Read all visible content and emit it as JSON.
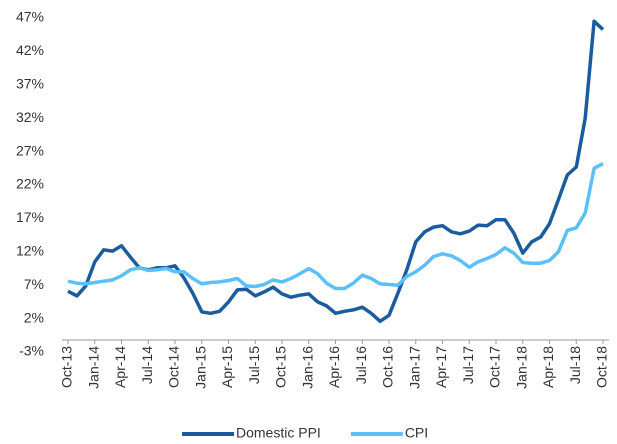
{
  "chart_data": {
    "type": "line",
    "categories": [
      "Oct-13",
      null,
      null,
      "Jan-14",
      null,
      null,
      "Apr-14",
      null,
      null,
      "Jul-14",
      null,
      null,
      "Oct-14",
      null,
      null,
      "Jan-15",
      null,
      null,
      "Apr-15",
      null,
      null,
      "Jul-15",
      null,
      null,
      "Oct-15",
      null,
      null,
      "Jan-16",
      null,
      null,
      "Apr-16",
      null,
      null,
      "Jul-16",
      null,
      null,
      "Oct-16",
      null,
      null,
      "Jan-17",
      null,
      null,
      "Apr-17",
      null,
      null,
      "Jul-17",
      null,
      null,
      "Oct-17",
      null,
      null,
      "Jan-18",
      null,
      null,
      "Apr-18",
      null,
      null,
      "Jul-18",
      null,
      null,
      "Oct-18"
    ],
    "series": [
      {
        "name": "Domestic PPI",
        "color": "#1b5c9e",
        "values": [
          6.1,
          5.4,
          6.9,
          10.5,
          12.3,
          12.1,
          12.9,
          11.2,
          9.6,
          9.3,
          9.6,
          9.6,
          9.9,
          8.1,
          5.8,
          3.0,
          2.8,
          3.1,
          4.5,
          6.3,
          6.4,
          5.4,
          6.0,
          6.7,
          5.7,
          5.2,
          5.5,
          5.7,
          4.5,
          3.9,
          2.8,
          3.1,
          3.3,
          3.7,
          2.8,
          1.6,
          2.5,
          5.8,
          9.3,
          13.5,
          15.0,
          15.7,
          15.9,
          15.0,
          14.7,
          15.1,
          16.0,
          15.9,
          16.8,
          16.8,
          14.8,
          11.8,
          13.5,
          14.2,
          16.2,
          19.8,
          23.5,
          24.7,
          32.0,
          46.5,
          45.3
        ]
      },
      {
        "name": "CPI",
        "color": "#5bc0f8",
        "values": [
          7.6,
          7.3,
          7.2,
          7.4,
          7.6,
          7.8,
          8.4,
          9.3,
          9.6,
          9.2,
          9.3,
          9.5,
          9.0,
          9.0,
          8.0,
          7.2,
          7.4,
          7.5,
          7.7,
          8.0,
          6.9,
          6.8,
          7.1,
          7.8,
          7.5,
          8.0,
          8.7,
          9.5,
          8.7,
          7.3,
          6.5,
          6.5,
          7.3,
          8.5,
          8.0,
          7.2,
          7.1,
          7.0,
          8.3,
          9.0,
          10.0,
          11.3,
          11.7,
          11.4,
          10.7,
          9.7,
          10.5,
          11.0,
          11.6,
          12.6,
          11.8,
          10.4,
          10.3,
          10.3,
          10.7,
          12.0,
          15.2,
          15.6,
          17.8,
          24.5,
          25.2
        ]
      }
    ],
    "ylim": [
      -3,
      47
    ],
    "yticks": [
      {
        "value": -3,
        "label": "-3%"
      },
      {
        "value": 2,
        "label": "2%"
      },
      {
        "value": 7,
        "label": "7%"
      },
      {
        "value": 12,
        "label": "12%"
      },
      {
        "value": 17,
        "label": "17%"
      },
      {
        "value": 22,
        "label": "22%"
      },
      {
        "value": 27,
        "label": "27%"
      },
      {
        "value": 32,
        "label": "32%"
      },
      {
        "value": 37,
        "label": "37%"
      },
      {
        "value": 42,
        "label": "42%"
      },
      {
        "value": 47,
        "label": "47%"
      }
    ],
    "legend": "bottom"
  }
}
